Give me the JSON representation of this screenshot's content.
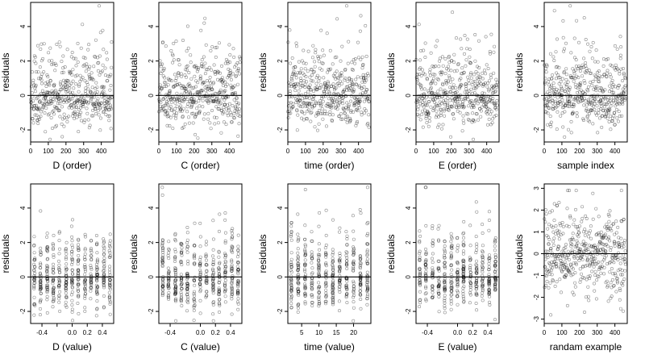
{
  "figure": {
    "ylabel": "residuals"
  },
  "chart_data": [
    {
      "type": "scatter",
      "xlabel": "D (order)",
      "ylabel": "residuals",
      "xlim": [
        0,
        470
      ],
      "ylim": [
        -2.7,
        5.4
      ],
      "xticks": [
        0,
        100,
        200,
        300,
        400
      ],
      "yticks": [
        -2,
        0,
        2,
        4
      ],
      "hline": 0,
      "seed": 11,
      "mode": "index",
      "n": 460
    },
    {
      "type": "scatter",
      "xlabel": "C (order)",
      "ylabel": "residuals",
      "xlim": [
        0,
        470
      ],
      "ylim": [
        -2.7,
        5.4
      ],
      "xticks": [
        0,
        100,
        200,
        300,
        400
      ],
      "yticks": [
        -2,
        0,
        2,
        4
      ],
      "hline": 0,
      "seed": 23,
      "mode": "index",
      "n": 460
    },
    {
      "type": "scatter",
      "xlabel": "time (order)",
      "ylabel": "residuals",
      "xlim": [
        0,
        470
      ],
      "ylim": [
        -2.7,
        5.4
      ],
      "xticks": [
        0,
        100,
        200,
        300,
        400
      ],
      "yticks": [
        -2,
        0,
        2,
        4
      ],
      "hline": 0,
      "seed": 37,
      "mode": "index",
      "n": 460
    },
    {
      "type": "scatter",
      "xlabel": "E (order)",
      "ylabel": "residuals",
      "xlim": [
        0,
        470
      ],
      "ylim": [
        -2.7,
        5.4
      ],
      "xticks": [
        0,
        100,
        200,
        300,
        400
      ],
      "yticks": [
        -2,
        0,
        2,
        4
      ],
      "hline": 0,
      "seed": 41,
      "mode": "index",
      "n": 460
    },
    {
      "type": "scatter",
      "xlabel": "sample index",
      "ylabel": "residuals",
      "xlim": [
        0,
        470
      ],
      "ylim": [
        -2.7,
        5.4
      ],
      "xticks": [
        0,
        100,
        200,
        300,
        400
      ],
      "yticks": [
        -2,
        0,
        2,
        4
      ],
      "hline": 0,
      "seed": 53,
      "mode": "index",
      "n": 460
    },
    {
      "type": "scatter",
      "xlabel": "D (value)",
      "ylabel": "residuals",
      "xlim": [
        -0.55,
        0.55
      ],
      "ylim": [
        -2.7,
        5.4
      ],
      "xticks": [
        -0.4,
        -0.2,
        0.0,
        0.2,
        0.4
      ],
      "xticklabels": [
        "-0.4",
        "",
        "0.0",
        "0.2",
        "0.4"
      ],
      "yticks": [
        -2,
        0,
        2,
        4
      ],
      "hline": 0,
      "seed": 61,
      "mode": "levels",
      "levels": [
        -0.5,
        -0.42,
        -0.33,
        -0.25,
        -0.17,
        -0.08,
        0,
        0.08,
        0.17,
        0.25,
        0.33,
        0.42,
        0.5
      ],
      "n": 460
    },
    {
      "type": "scatter",
      "xlabel": "C (value)",
      "ylabel": "residuals",
      "xlim": [
        -0.55,
        0.55
      ],
      "ylim": [
        -2.7,
        5.4
      ],
      "xticks": [
        -0.4,
        0.0,
        0.2,
        0.4
      ],
      "xticklabels": [
        "-0.4",
        "0.0",
        "0.2",
        "0.4"
      ],
      "yticks": [
        -2,
        0,
        2,
        4
      ],
      "hline": 0,
      "seed": 73,
      "mode": "levels",
      "levels": [
        -0.5,
        -0.42,
        -0.33,
        -0.25,
        -0.17,
        -0.08,
        0,
        0.08,
        0.17,
        0.25,
        0.33,
        0.42,
        0.5
      ],
      "n": 460
    },
    {
      "type": "scatter",
      "xlabel": "time (value)",
      "ylabel": "residuals",
      "xlim": [
        1,
        25
      ],
      "ylim": [
        -2.7,
        5.4
      ],
      "xticks": [
        5,
        10,
        15,
        20
      ],
      "xticklabels": [
        "5",
        "10",
        "15",
        "20"
      ],
      "yticks": [
        -2,
        0,
        2,
        4
      ],
      "hline": 0,
      "seed": 83,
      "mode": "levels",
      "levels": [
        2,
        4,
        6,
        8,
        10,
        12,
        14,
        16,
        18,
        20,
        22,
        24
      ],
      "n": 460
    },
    {
      "type": "scatter",
      "xlabel": "E (value)",
      "ylabel": "residuals",
      "xlim": [
        -0.55,
        0.55
      ],
      "ylim": [
        -2.7,
        5.4
      ],
      "xticks": [
        -0.4,
        0.0,
        0.2,
        0.4
      ],
      "xticklabels": [
        "-0.4",
        "0.0",
        "0.2",
        "0.4"
      ],
      "yticks": [
        -2,
        0,
        2,
        4
      ],
      "hline": 0,
      "seed": 97,
      "mode": "levels",
      "levels": [
        -0.5,
        -0.42,
        -0.33,
        -0.25,
        -0.17,
        -0.08,
        0,
        0.08,
        0.17,
        0.25,
        0.33,
        0.42,
        0.5
      ],
      "n": 460
    },
    {
      "type": "scatter",
      "xlabel": "randam example",
      "ylabel": "residuals",
      "xlim": [
        0,
        470
      ],
      "ylim": [
        -3.2,
        3.2
      ],
      "xticks": [
        0,
        100,
        200,
        300,
        400
      ],
      "yticks": [
        -3,
        -2,
        -1,
        0,
        1,
        2,
        3
      ],
      "hline": 0,
      "seed": 107,
      "mode": "random",
      "n": 460
    }
  ]
}
